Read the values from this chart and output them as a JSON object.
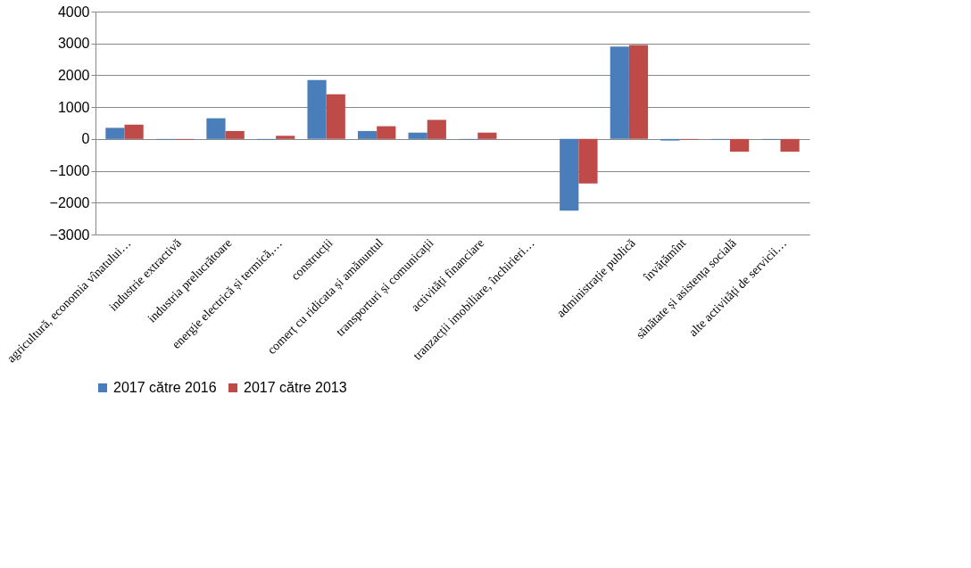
{
  "chart_data": {
    "type": "bar",
    "categories": [
      "agricultură, economia vînatului…",
      "industrie extractivă",
      "industria prelucrătoare",
      "energie electrică și termică,…",
      "construcții",
      "comerț cu ridicata și amănuntul",
      "transporturi și comunicații",
      "activități financiare",
      "tranzacții imobiliare, închirieri…",
      null,
      "administrație publică",
      "învățămînt",
      "sănătate și asistența socială",
      "alte activități de servicii…"
    ],
    "series": [
      {
        "name": "2017 către 2016",
        "color": "#4a7ebb",
        "values": [
          350,
          -20,
          650,
          -20,
          1850,
          250,
          200,
          -20,
          null,
          -2250,
          2900,
          -50,
          -20,
          -20
        ]
      },
      {
        "name": "2017 către 2013",
        "color": "#be4b48",
        "values": [
          450,
          -20,
          250,
          100,
          1400,
          400,
          600,
          200,
          null,
          -1400,
          2950,
          -20,
          -400,
          -400
        ]
      }
    ],
    "ylim": [
      -3000,
      4000
    ],
    "yticks": [
      -3000,
      -2000,
      -1000,
      0,
      1000,
      2000,
      3000,
      4000
    ],
    "grid": "y",
    "legend": "bottom"
  }
}
